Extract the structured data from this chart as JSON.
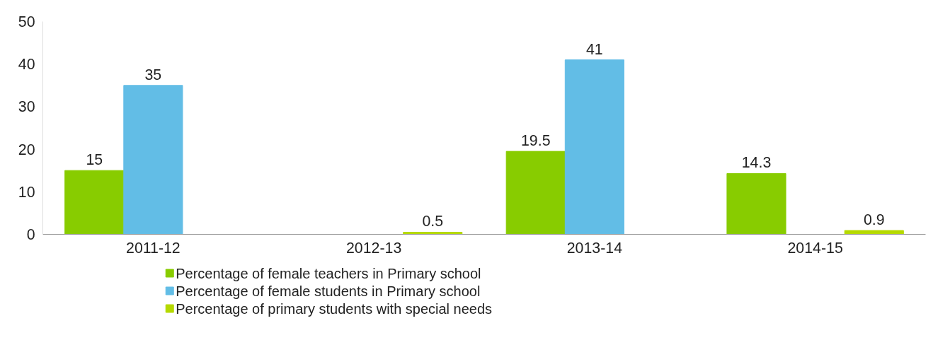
{
  "chart_data": {
    "type": "bar",
    "categories": [
      "2011-12",
      "2012-13",
      "2013-14",
      "2014-15"
    ],
    "series": [
      {
        "name": "Percentage of female teachers in Primary school",
        "color": "#88cc00",
        "values": [
          15,
          null,
          19.5,
          14.3
        ]
      },
      {
        "name": "Percentage of female students in Primary school",
        "color": "#62bde6",
        "values": [
          35,
          null,
          41,
          null
        ]
      },
      {
        "name": "Percentage of primary students with special needs",
        "color": "#b5d900",
        "values": [
          null,
          0.5,
          null,
          0.9
        ]
      }
    ],
    "ylim": [
      0,
      50
    ],
    "yticks": [
      0,
      10,
      20,
      30,
      40,
      50
    ],
    "data_labels": true,
    "grid": false,
    "legend": "bottom"
  }
}
